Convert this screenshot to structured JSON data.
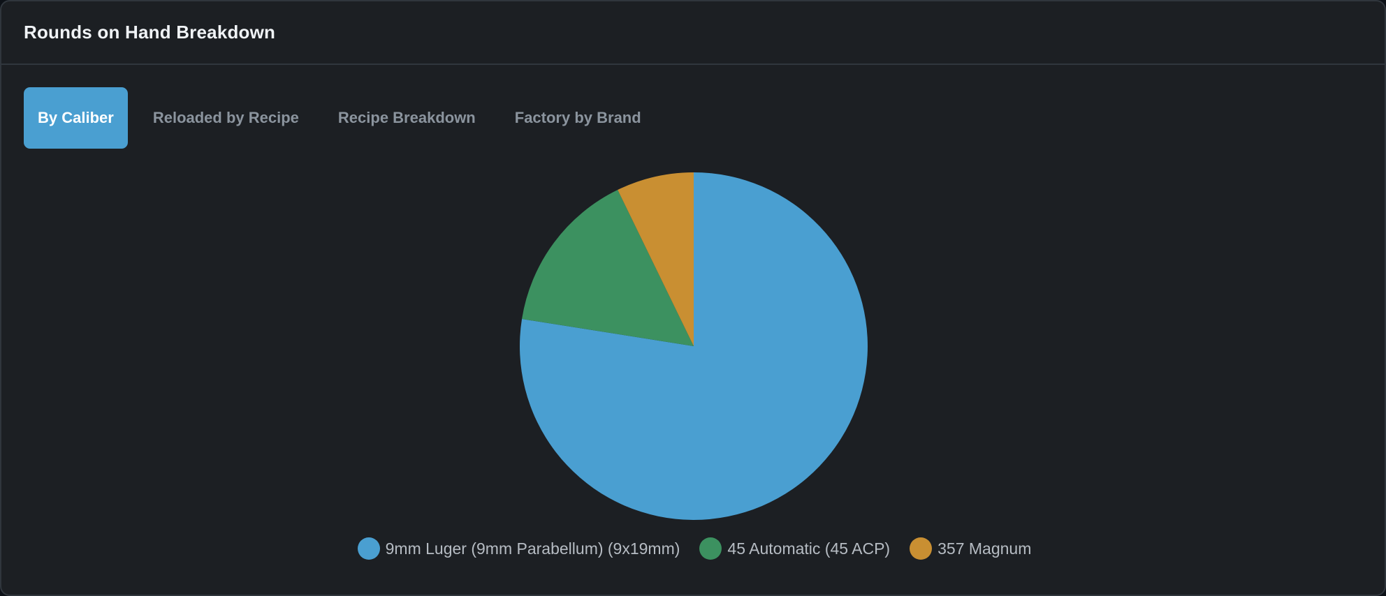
{
  "card": {
    "title": "Rounds on Hand Breakdown"
  },
  "tabs": [
    {
      "label": "By Caliber",
      "active": true
    },
    {
      "label": "Reloaded by Recipe",
      "active": false
    },
    {
      "label": "Recipe Breakdown",
      "active": false
    },
    {
      "label": "Factory by Brand",
      "active": false
    }
  ],
  "chart_data": {
    "type": "pie",
    "title": "",
    "legend_position": "bottom",
    "categories": [
      "9mm Luger (9mm Parabellum) (9x19mm)",
      "45 Automatic (45 ACP)",
      "357 Magnum"
    ],
    "values": [
      77.5,
      15.3,
      7.2
    ],
    "colors": [
      "#4a9fd1",
      "#3c9160",
      "#c98f32"
    ]
  }
}
